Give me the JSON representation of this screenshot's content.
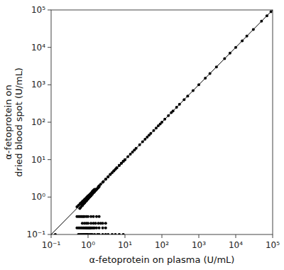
{
  "chart_data": {
    "type": "scatter",
    "xlabel": "α-fetoprotein on plasma (U/mL)",
    "ylabel": "α-fetoprotein on\ndried blood spot (U/mL)",
    "log": true,
    "grid": false,
    "xlim": [
      0.1,
      100000
    ],
    "ylim": [
      0.1,
      100000
    ],
    "xticks": [
      {
        "value": 0.1,
        "label": "10⁻¹"
      },
      {
        "value": 1,
        "label": "10⁰"
      },
      {
        "value": 10,
        "label": "10¹"
      },
      {
        "value": 100,
        "label": "10²"
      },
      {
        "value": 1000,
        "label": "10³"
      },
      {
        "value": 10000,
        "label": "10⁴"
      },
      {
        "value": 100000,
        "label": "10⁵"
      }
    ],
    "yticks": [
      {
        "value": 0.1,
        "label": "10⁻¹"
      },
      {
        "value": 1,
        "label": "10⁰"
      },
      {
        "value": 10,
        "label": "10¹"
      },
      {
        "value": 100,
        "label": "10²"
      },
      {
        "value": 1000,
        "label": "10³"
      },
      {
        "value": 10000,
        "label": "10⁴"
      },
      {
        "value": 100000,
        "label": "10⁵"
      }
    ],
    "series": [
      {
        "type": "scatter",
        "color": "#000000",
        "x": [
          0.13,
          0.5,
          0.55,
          0.6,
          0.62,
          0.65,
          0.68,
          0.7,
          0.72,
          0.75,
          0.78,
          0.8,
          0.82,
          0.85,
          0.88,
          0.9,
          0.92,
          0.95,
          0.98,
          1.0,
          1.02,
          1.05,
          1.08,
          1.1,
          1.12,
          1.15,
          1.18,
          1.2,
          1.22,
          1.25,
          1.28,
          1.3,
          1.35,
          1.4,
          1.45,
          1.5,
          0.6,
          0.65,
          0.7,
          0.75,
          0.8,
          0.85,
          0.9,
          0.95,
          1.0,
          1.05,
          1.1,
          1.15,
          1.2,
          1.3,
          1.4,
          1.5,
          1.6,
          1.7,
          0.7,
          0.8,
          0.9,
          1.0,
          1.1,
          1.2,
          1.3,
          1.5,
          1.7,
          1.9,
          0.6,
          0.7,
          0.8,
          0.9,
          1.0,
          1.1,
          1.2,
          1.4,
          1.6,
          1.8,
          2.0,
          0.7,
          0.8,
          0.9,
          1.0,
          1.2,
          1.4,
          1.6,
          1.9,
          2.2,
          2.5,
          3.0,
          1.0,
          1.2,
          1.4,
          1.6,
          1.9,
          2.2,
          2.6,
          3.0,
          3.5,
          4.0,
          4.5,
          5.0,
          5.5,
          6.0,
          7.0,
          8.0,
          9.0,
          2.0,
          2.5,
          3.0,
          3.5,
          4.0,
          5.0,
          6.0,
          7.0,
          8.0,
          9.0,
          10.0,
          10.0,
          12.0,
          14.0,
          16.0,
          18.0,
          20.0,
          25.0,
          30.0,
          35.0,
          40.0,
          45.0,
          50.0,
          60.0,
          70.0,
          80.0,
          90.0,
          100.0,
          120.0,
          150.0,
          180.0,
          200.0,
          250.0,
          300.0,
          400.0,
          500.0,
          700.0,
          1000.0,
          1500.0,
          2000.0,
          3000.0,
          5000.0,
          7000.0,
          10000.0,
          15000.0,
          20000.0,
          30000.0,
          50000.0,
          70000.0,
          90000.0,
          0.55,
          0.6,
          0.65,
          0.7,
          0.75,
          0.8,
          0.85,
          0.9,
          0.95,
          1.0,
          1.1,
          1.2,
          1.3,
          1.5,
          1.8,
          2.0,
          2.5,
          3.0,
          3.5,
          4.5,
          5.5,
          7.0,
          9.0,
          0.5,
          0.55,
          0.6,
          0.65,
          0.7,
          0.75,
          0.8,
          0.85,
          0.9,
          0.95,
          1.0,
          1.05,
          1.1,
          1.15,
          1.2,
          1.3,
          1.4,
          1.5,
          1.7,
          2.0,
          2.5,
          3.0,
          0.5,
          0.55,
          0.6,
          0.65,
          0.7,
          0.75,
          0.8,
          0.9,
          1.0,
          1.2,
          1.4,
          1.7,
          2.0
        ],
        "values": [
          0.1,
          0.55,
          0.6,
          0.65,
          0.68,
          0.7,
          0.72,
          0.75,
          0.78,
          0.8,
          0.82,
          0.85,
          0.88,
          0.9,
          0.92,
          0.95,
          0.98,
          1.0,
          1.05,
          1.05,
          1.08,
          1.1,
          1.12,
          1.15,
          1.18,
          1.2,
          1.22,
          1.25,
          1.28,
          1.3,
          1.35,
          1.4,
          1.45,
          1.5,
          1.55,
          1.6,
          0.5,
          0.55,
          0.6,
          0.65,
          0.7,
          0.75,
          0.8,
          0.85,
          0.9,
          0.95,
          1.0,
          1.05,
          1.1,
          1.2,
          1.3,
          1.4,
          1.5,
          1.6,
          0.6,
          0.7,
          0.8,
          0.9,
          1.0,
          1.1,
          1.2,
          1.4,
          1.6,
          1.8,
          0.5,
          0.6,
          0.7,
          0.8,
          0.9,
          1.0,
          1.1,
          1.3,
          1.5,
          1.7,
          1.9,
          0.2,
          0.2,
          0.2,
          0.2,
          0.2,
          0.2,
          0.2,
          0.2,
          0.2,
          0.2,
          0.2,
          1.0,
          1.2,
          1.4,
          1.6,
          1.9,
          2.2,
          2.6,
          3.0,
          3.5,
          4.0,
          4.5,
          5.0,
          5.5,
          6.0,
          7.0,
          8.0,
          9.0,
          2.0,
          2.5,
          3.0,
          3.5,
          4.0,
          5.0,
          6.0,
          7.0,
          8.0,
          9.0,
          10.0,
          10.0,
          12.0,
          14.0,
          16.0,
          18.0,
          20.0,
          25.0,
          30.0,
          35.0,
          40.0,
          45.0,
          50.0,
          60.0,
          70.0,
          80.0,
          90.0,
          100.0,
          120.0,
          150.0,
          180.0,
          200.0,
          250.0,
          300.0,
          400.0,
          500.0,
          700.0,
          1000.0,
          1500.0,
          2000.0,
          3000.0,
          5000.0,
          7000.0,
          10000.0,
          15000.0,
          20000.0,
          30000.0,
          50000.0,
          70000.0,
          90000.0,
          0.1,
          0.1,
          0.1,
          0.1,
          0.1,
          0.1,
          0.1,
          0.1,
          0.1,
          0.1,
          0.1,
          0.1,
          0.1,
          0.1,
          0.1,
          0.1,
          0.1,
          0.1,
          0.1,
          0.1,
          0.1,
          0.1,
          0.1,
          0.15,
          0.15,
          0.15,
          0.15,
          0.15,
          0.15,
          0.15,
          0.15,
          0.15,
          0.15,
          0.15,
          0.15,
          0.15,
          0.15,
          0.15,
          0.15,
          0.15,
          0.15,
          0.15,
          0.15,
          0.15,
          0.15,
          0.3,
          0.3,
          0.3,
          0.3,
          0.3,
          0.3,
          0.3,
          0.3,
          0.3,
          0.3,
          0.3,
          0.3,
          0.3
        ]
      },
      {
        "type": "line",
        "color": "#000000",
        "x": [
          0.1,
          100000
        ],
        "values": [
          0.1,
          100000
        ]
      }
    ]
  }
}
